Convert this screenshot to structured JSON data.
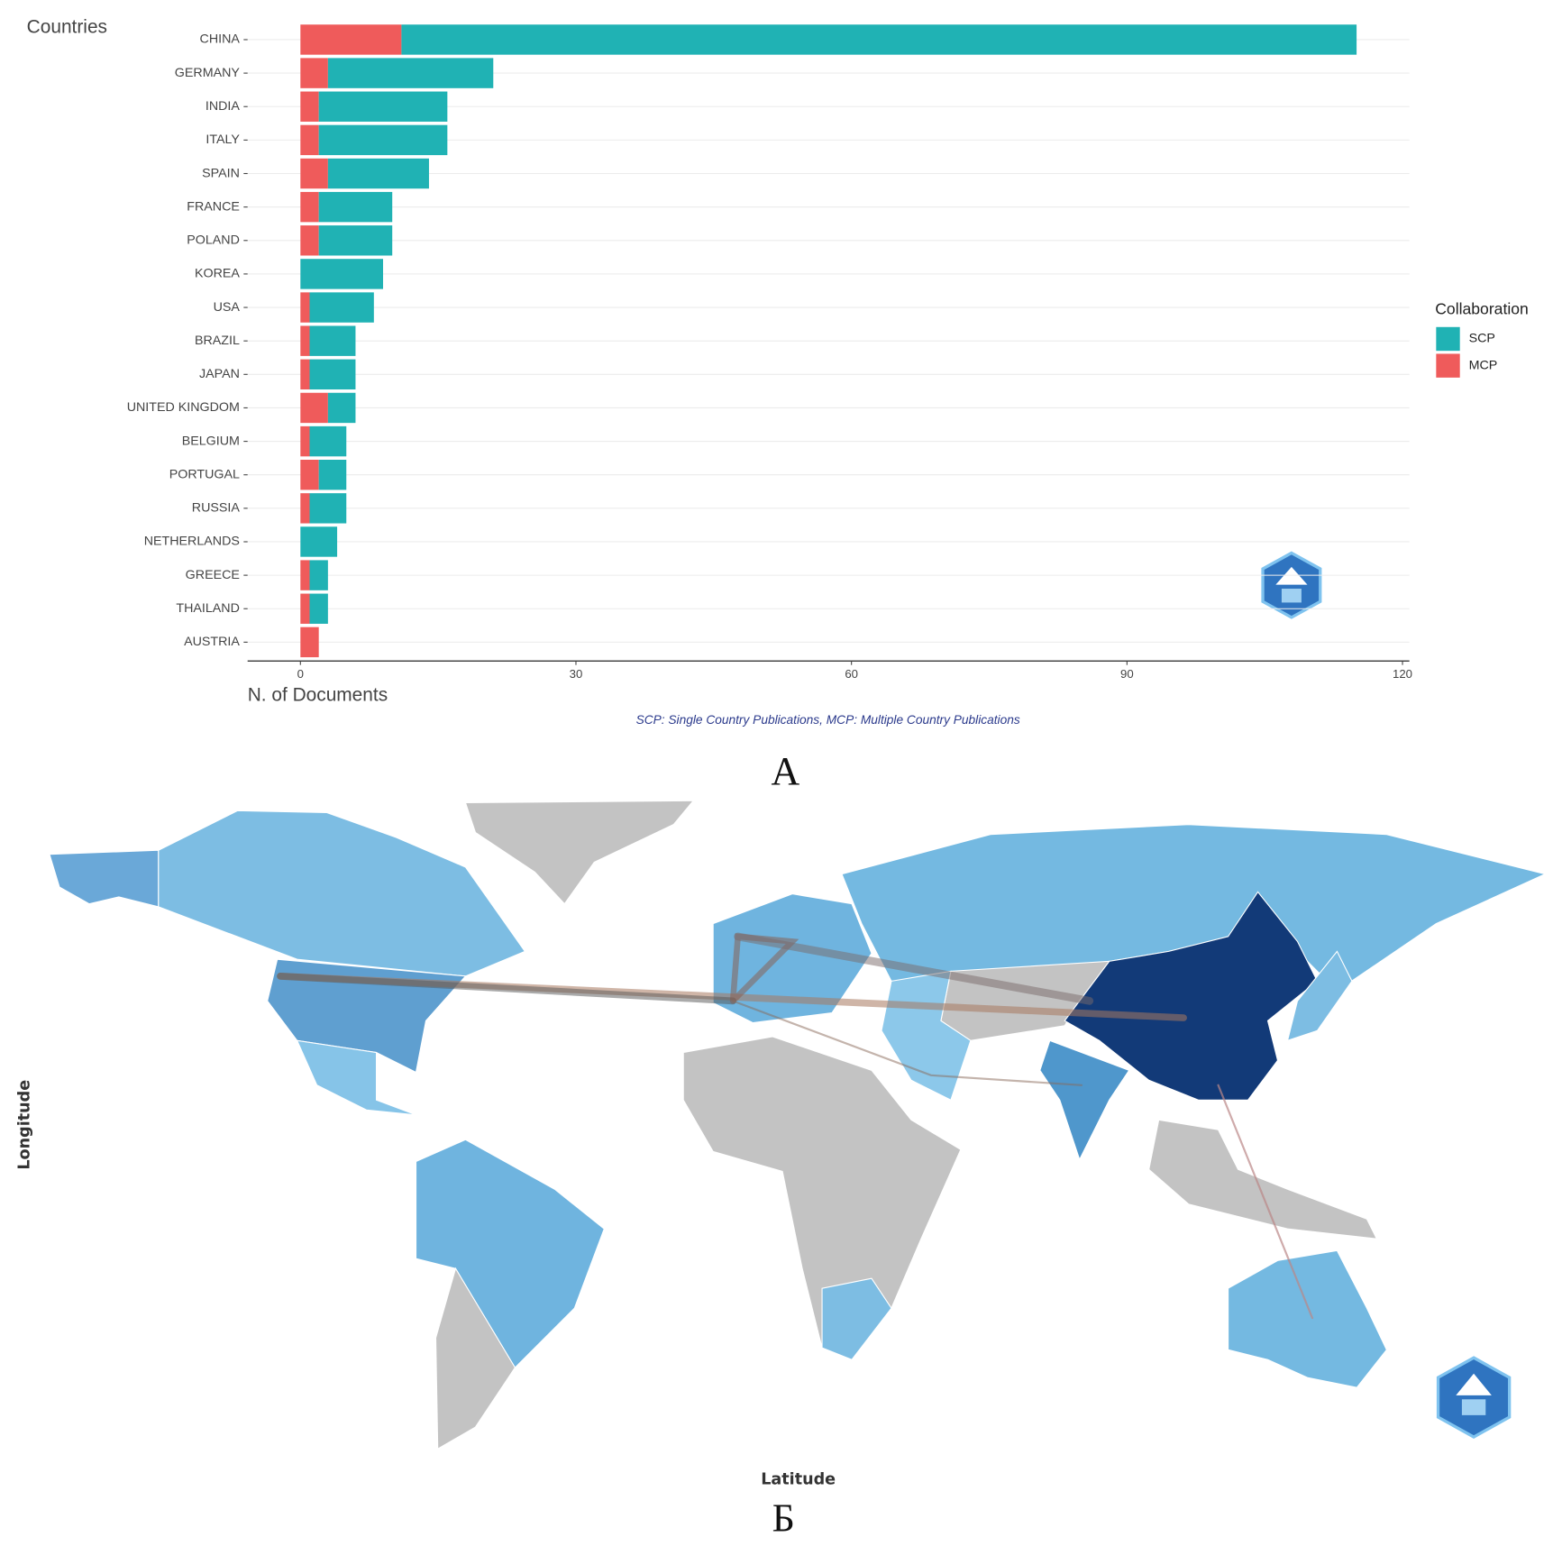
{
  "chart_data": {
    "type": "bar",
    "orientation": "horizontal",
    "stacked": true,
    "y_label": "Countries",
    "x_label": "N. of Documents",
    "caption": "SCP: Single Country Publications, MCP: Multiple Country Publications",
    "legend_title": "Collaboration",
    "legend_position": "right",
    "categories": [
      "CHINA",
      "GERMANY",
      "INDIA",
      "ITALY",
      "SPAIN",
      "FRANCE",
      "POLAND",
      "KOREA",
      "USA",
      "BRAZIL",
      "JAPAN",
      "UNITED KINGDOM",
      "BELGIUM",
      "PORTUGAL",
      "RUSSIA",
      "NETHERLANDS",
      "GREECE",
      "THAILAND",
      "AUSTRIA"
    ],
    "series": [
      {
        "name": "SCP",
        "color": "#20b2b4",
        "values": [
          104,
          18,
          14,
          14,
          11,
          8,
          8,
          9,
          7,
          5,
          5,
          3,
          4,
          3,
          4,
          4,
          2,
          2,
          0
        ]
      },
      {
        "name": "MCP",
        "color": "#ef5b5b",
        "values": [
          11,
          3,
          2,
          2,
          3,
          2,
          2,
          0,
          1,
          1,
          1,
          3,
          1,
          2,
          1,
          0,
          1,
          1,
          2
        ]
      }
    ],
    "stack_order": [
      "MCP",
      "SCP"
    ],
    "xlim": [
      -5.75,
      120.75
    ],
    "xticks": [
      0,
      30,
      60,
      90,
      120
    ],
    "grid": true
  },
  "panel_labels": [
    "А",
    "Б"
  ],
  "map": {
    "x_label": "Latitude",
    "y_label": "Longitude"
  }
}
